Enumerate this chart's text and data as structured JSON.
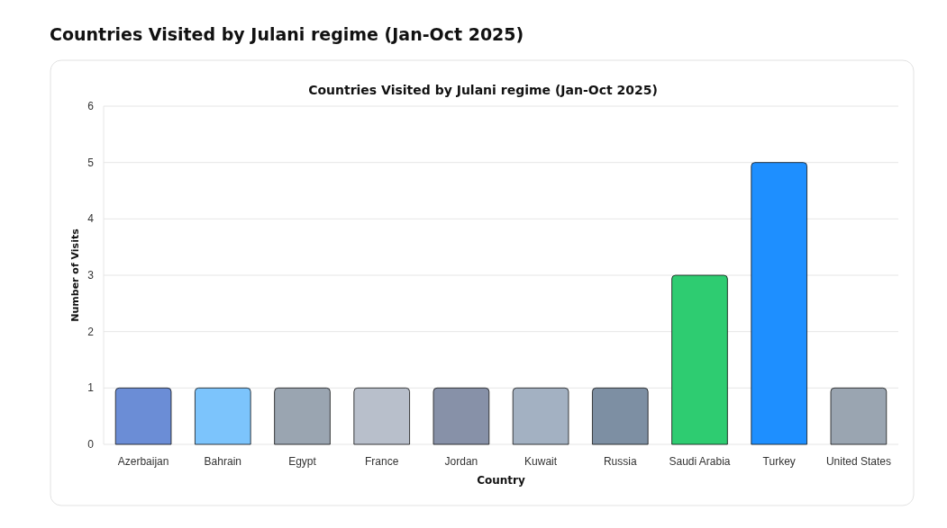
{
  "chart_data": {
    "type": "bar",
    "title": "Countries Visited by Julani regime (Jan-Oct 2025)",
    "xlabel": "Country",
    "ylabel": "Number of Visits",
    "annotations": [
      "Countries Visited by Julani regime (Jan-Oct 2025)"
    ],
    "categories": [
      "Azerbaijan",
      "Bahrain",
      "Egypt",
      "France",
      "Jordan",
      "Kuwait",
      "Russia",
      "Saudi Arabia",
      "Turkey",
      "United States"
    ],
    "values": [
      1,
      1,
      1,
      1,
      1,
      1,
      1,
      3,
      5,
      1
    ],
    "colors": [
      "#6b8dd6",
      "#7cc4fc",
      "#9aa5b1",
      "#b8bfcb",
      "#8791a8",
      "#a3b1c2",
      "#7d8fa3",
      "#2ecc71",
      "#1e8fff",
      "#9aa5b1"
    ],
    "ylim": [
      0,
      6
    ],
    "yticks": [
      0,
      1,
      2,
      3,
      4,
      5,
      6
    ],
    "grid": "y"
  }
}
